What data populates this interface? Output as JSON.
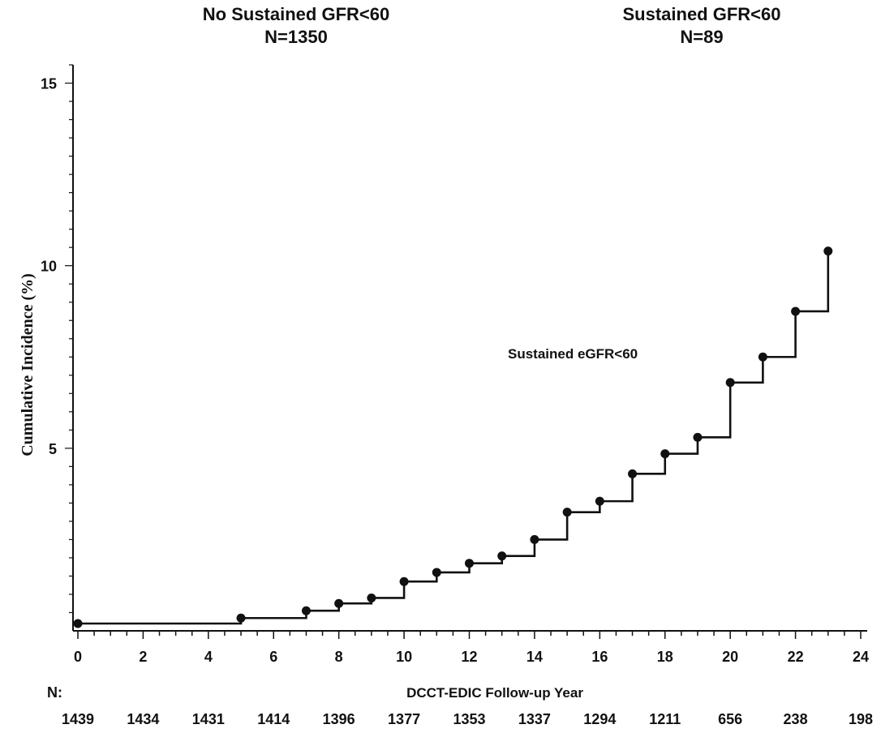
{
  "groups": {
    "left": {
      "title": "No Sustained GFR<60",
      "n": "N=1350"
    },
    "right": {
      "title": "Sustained GFR<60",
      "n": "N=89"
    }
  },
  "chart_data": {
    "type": "line",
    "title": "",
    "xlabel": "DCCT-EDIC Follow-up Year",
    "ylabel": "Cumulative Incidence (%)",
    "xlim": [
      0,
      24
    ],
    "ylim": [
      0,
      15.5
    ],
    "x_ticks": [
      0,
      2,
      4,
      6,
      8,
      10,
      12,
      14,
      16,
      18,
      20,
      22,
      24
    ],
    "y_ticks": [
      5,
      10,
      15
    ],
    "grid": false,
    "step": true,
    "annotation": "Sustained eGFR<60",
    "series": [
      {
        "x": [
          0,
          5,
          7,
          8,
          9,
          10,
          11,
          12,
          13,
          14,
          15,
          16,
          17,
          18,
          19,
          20,
          21,
          22,
          23
        ],
        "y": [
          0.2,
          0.35,
          0.55,
          0.75,
          0.9,
          1.35,
          1.6,
          1.85,
          2.05,
          2.5,
          3.25,
          3.55,
          4.3,
          4.85,
          5.3,
          6.8,
          7.5,
          8.75,
          10.4
        ]
      }
    ],
    "risk_table": {
      "label": "N:",
      "x": [
        0,
        2,
        4,
        6,
        8,
        10,
        12,
        14,
        16,
        18,
        20,
        22,
        24
      ],
      "values": [
        "1439",
        "1434",
        "1431",
        "1414",
        "1396",
        "1377",
        "1353",
        "1337",
        "1294",
        "1211",
        "656",
        "238",
        "198"
      ]
    }
  }
}
